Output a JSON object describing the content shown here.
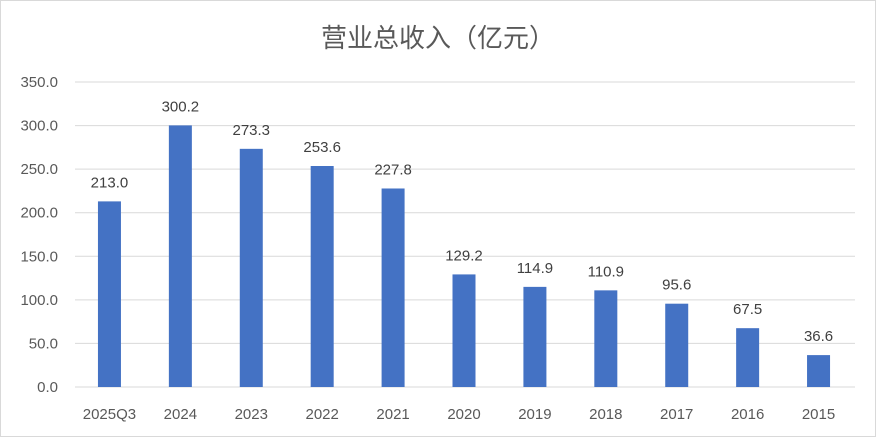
{
  "chart_data": {
    "type": "bar",
    "title": "营业总收入（亿元）",
    "categories": [
      "2025Q3",
      "2024",
      "2023",
      "2022",
      "2021",
      "2020",
      "2019",
      "2018",
      "2017",
      "2016",
      "2015"
    ],
    "values": [
      213.0,
      300.2,
      273.3,
      253.6,
      227.8,
      129.2,
      114.9,
      110.9,
      95.6,
      67.5,
      36.6
    ],
    "data_labels": [
      "213.0",
      "300.2",
      "273.3",
      "253.6",
      "227.8",
      "129.2",
      "114.9",
      "110.9",
      "95.6",
      "67.5",
      "36.6"
    ],
    "y_ticks": [
      "0.0",
      "50.0",
      "100.0",
      "150.0",
      "200.0",
      "250.0",
      "300.0",
      "350.0"
    ],
    "ylim": [
      0,
      350
    ],
    "grid": true,
    "legend": "none",
    "bar_color": "#4472c4",
    "grid_color": "#d9d9d9"
  }
}
